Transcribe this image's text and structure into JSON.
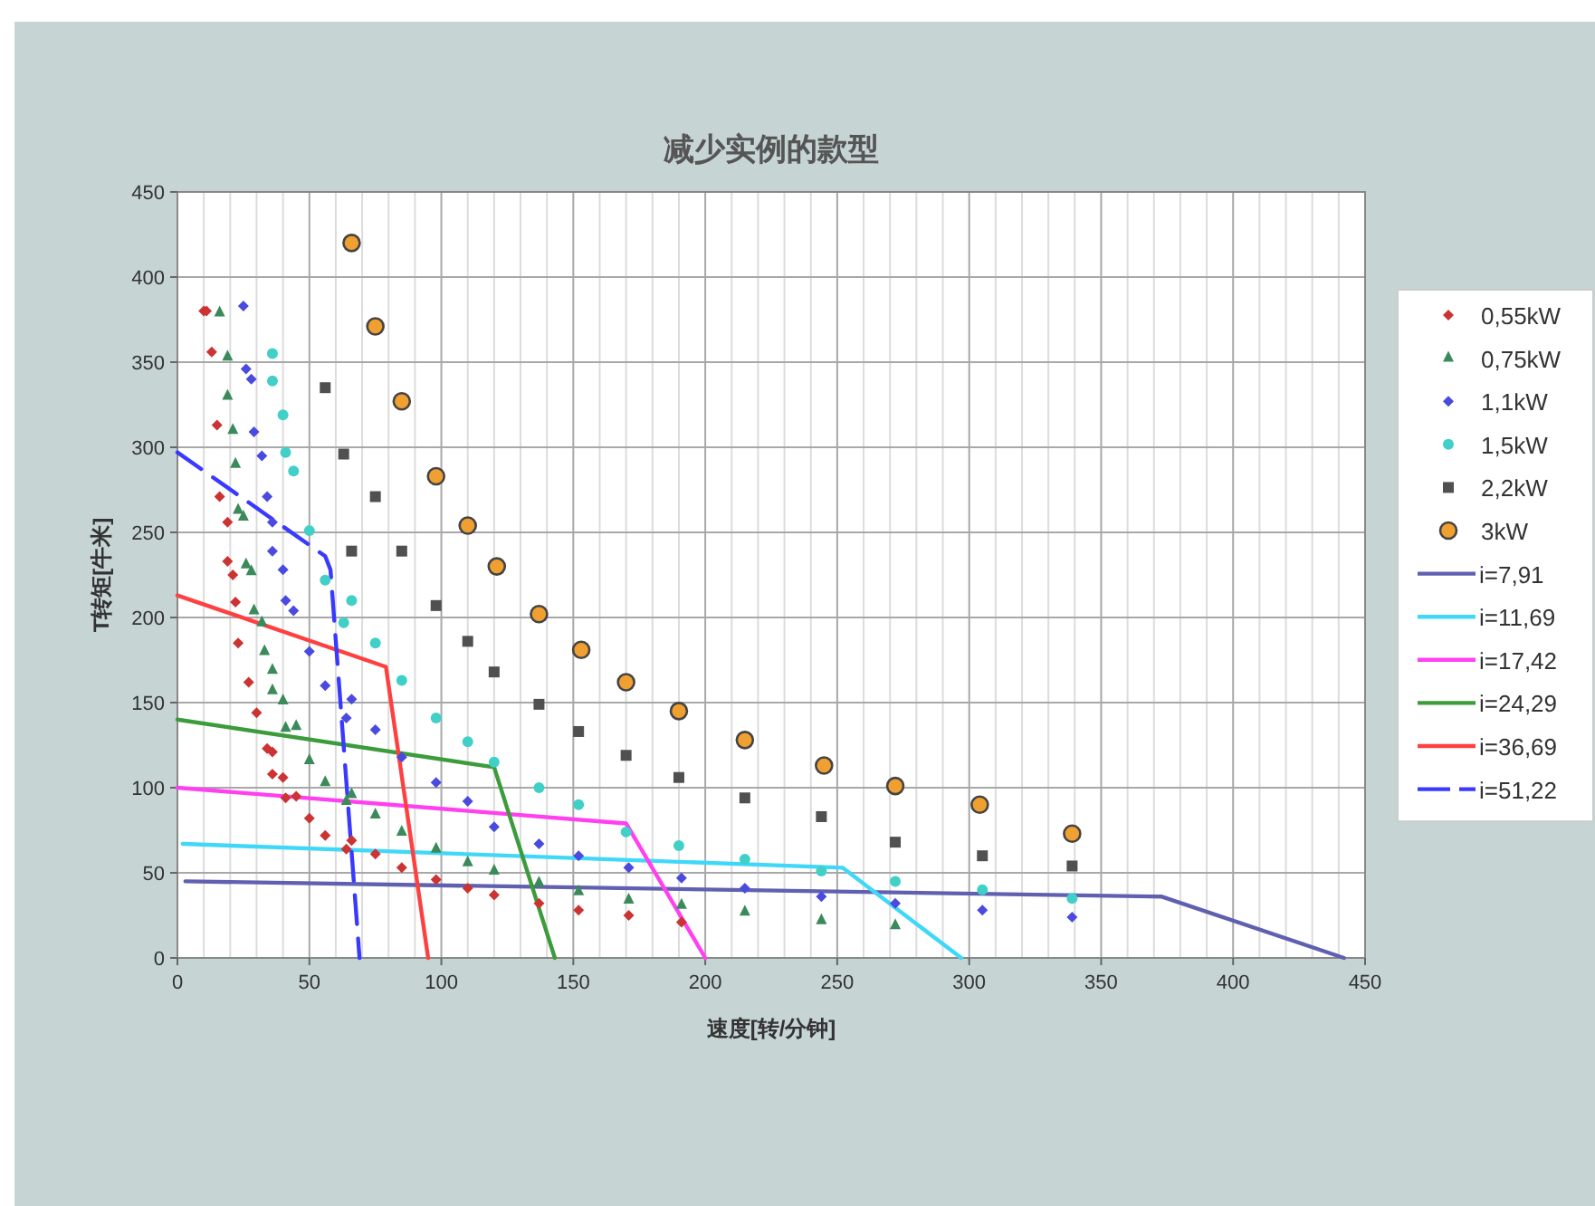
{
  "chart_data": {
    "type": "scatter",
    "title": "减少实例的款型",
    "xlabel": "速度[转/分钟]",
    "ylabel": "T转矩[牛米]",
    "xlim": [
      0,
      450
    ],
    "xticks": [
      0,
      50,
      100,
      150,
      200,
      250,
      300,
      350,
      400,
      450
    ],
    "ylim": [
      0,
      450
    ],
    "yticks": [
      0,
      50,
      100,
      150,
      200,
      250,
      300,
      350,
      400,
      450
    ],
    "grid": true,
    "legend": "right",
    "series": [
      {
        "name": "0,55kW",
        "type": "scatter",
        "marker": "diamond",
        "color": "#cc3333",
        "x": [
          10,
          11,
          13,
          15,
          16,
          19,
          19,
          21,
          22,
          23,
          27,
          30,
          34,
          36,
          36,
          40,
          41,
          45,
          50,
          56,
          66,
          64,
          75,
          85,
          98,
          110,
          120,
          137,
          152,
          171,
          191
        ],
        "values": [
          380,
          380,
          356,
          313,
          271,
          256,
          233,
          225,
          209,
          185,
          162,
          144,
          123,
          121,
          108,
          106,
          94,
          95,
          82,
          72,
          69,
          64,
          61,
          53,
          46,
          41,
          37,
          32,
          28,
          25,
          21
        ]
      },
      {
        "name": "0,75kW",
        "type": "scatter",
        "marker": "triangle",
        "color": "#3a8a5a",
        "x": [
          16,
          19,
          19,
          21,
          22,
          23,
          25,
          26,
          28,
          29,
          32,
          33,
          36,
          36,
          40,
          41,
          45,
          50,
          56,
          66,
          64,
          75,
          85,
          98,
          110,
          120,
          137,
          152,
          171,
          191,
          215,
          244,
          272
        ],
        "values": [
          379,
          353,
          330,
          310,
          290,
          263,
          259,
          231,
          227,
          204,
          197,
          180,
          169,
          157,
          151,
          135,
          136,
          116,
          103,
          96,
          92,
          84,
          74,
          64,
          56,
          51,
          44,
          39,
          34,
          31,
          27,
          22,
          19
        ]
      },
      {
        "name": "1,1kW",
        "type": "scatter",
        "marker": "diamond",
        "color": "#4a4ae0",
        "x": [
          25,
          26,
          28,
          29,
          32,
          34,
          36,
          36,
          40,
          41,
          44,
          50,
          56,
          66,
          64,
          75,
          85,
          98,
          110,
          120,
          137,
          152,
          171,
          191,
          215,
          244,
          272,
          305,
          339
        ],
        "values": [
          383,
          346,
          340,
          309,
          295,
          271,
          256,
          239,
          228,
          210,
          204,
          180,
          160,
          152,
          141,
          134,
          118,
          103,
          92,
          77,
          67,
          60,
          53,
          47,
          41,
          36,
          32,
          28,
          24
        ]
      },
      {
        "name": "1,5kW",
        "type": "scatter",
        "marker": "circle",
        "color": "#40d0c8",
        "x": [
          36,
          36,
          40,
          41,
          44,
          50,
          56,
          66,
          63,
          75,
          85,
          98,
          110,
          120,
          137,
          152,
          170,
          190,
          215,
          244,
          272,
          305,
          339
        ],
        "values": [
          355,
          339,
          319,
          297,
          286,
          251,
          222,
          210,
          197,
          185,
          163,
          141,
          127,
          115,
          100,
          90,
          74,
          66,
          58,
          51,
          45,
          40,
          35
        ]
      },
      {
        "name": "2,2kW",
        "type": "scatter",
        "marker": "square",
        "color": "#505050",
        "x": [
          56,
          63,
          75,
          66,
          85,
          98,
          110,
          120,
          137,
          152,
          170,
          190,
          215,
          244,
          272,
          305,
          339
        ],
        "values": [
          335,
          296,
          271,
          239,
          239,
          207,
          186,
          168,
          149,
          133,
          119,
          106,
          94,
          83,
          68,
          60,
          54
        ]
      },
      {
        "name": "3kW",
        "type": "scatter",
        "marker": "circle",
        "color": "#f0a030",
        "x": [
          66,
          75,
          85,
          98,
          110,
          121,
          137,
          153,
          170,
          190,
          215,
          245,
          272,
          304,
          339
        ],
        "values": [
          420,
          371,
          327,
          283,
          254,
          230,
          202,
          181,
          162,
          145,
          128,
          113,
          101,
          90,
          73
        ]
      },
      {
        "name": "i=7,91",
        "type": "line",
        "line_style": "solid",
        "color": "#6060b0",
        "x": [
          3,
          373,
          442
        ],
        "values": [
          45,
          36,
          0
        ]
      },
      {
        "name": "i=11,69",
        "type": "line",
        "line_style": "solid",
        "color": "#40d8f8",
        "x": [
          2,
          252,
          297
        ],
        "values": [
          67,
          53,
          0
        ]
      },
      {
        "name": "i=17,42",
        "type": "line",
        "line_style": "solid",
        "color": "#ff40f0",
        "x": [
          0,
          170,
          200
        ],
        "values": [
          100,
          79,
          0
        ]
      },
      {
        "name": "i=24,29",
        "type": "line",
        "line_style": "solid",
        "color": "#3c9c3c",
        "x": [
          0,
          120,
          143
        ],
        "values": [
          140,
          112,
          0
        ]
      },
      {
        "name": "i=36,69",
        "type": "line",
        "line_style": "solid",
        "color": "#ff4040",
        "x": [
          0,
          79,
          95
        ],
        "values": [
          213,
          171,
          0
        ]
      },
      {
        "name": "i=51,22",
        "type": "line",
        "line_style": "dashed",
        "color": "#3a3aff",
        "x": [
          0,
          56,
          58,
          69
        ],
        "values": [
          297,
          236,
          228,
          0
        ]
      }
    ]
  }
}
